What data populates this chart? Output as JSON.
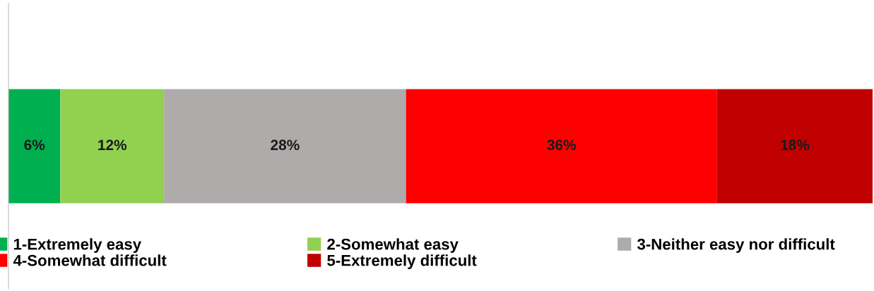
{
  "chart_data": {
    "type": "bar",
    "orientation": "horizontal",
    "stacked": true,
    "categories": [
      null
    ],
    "xlim": [
      0,
      100
    ],
    "legend": "bottom",
    "series": [
      {
        "name": "1-Extremely easy",
        "color": "#00b050",
        "values": [
          6
        ],
        "value_labels": [
          "6%"
        ]
      },
      {
        "name": "2-Somewhat easy",
        "color": "#92d050",
        "values": [
          12
        ],
        "value_labels": [
          "12%"
        ]
      },
      {
        "name": "3-Neither easy nor difficult",
        "color": "#afabab",
        "values": [
          28
        ],
        "value_labels": [
          "28%"
        ]
      },
      {
        "name": "4-Somewhat difficult",
        "color": "#ff0000",
        "values": [
          36
        ],
        "value_labels": [
          "36%"
        ]
      },
      {
        "name": "5-Extremely difficult",
        "color": "#c00000",
        "values": [
          18
        ],
        "value_labels": [
          "18%"
        ]
      }
    ]
  }
}
